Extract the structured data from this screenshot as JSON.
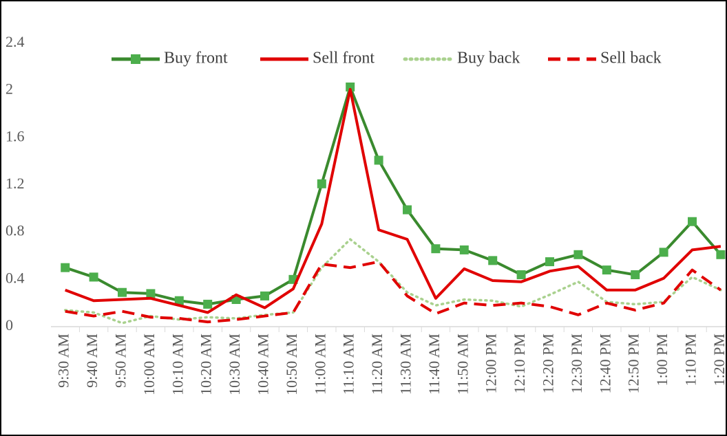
{
  "chart_data": {
    "type": "line",
    "categories": [
      "9:30 AM",
      "9:40 AM",
      "9:50 AM",
      "10:00 AM",
      "10:10 AM",
      "10:20 AM",
      "10:30 AM",
      "10:40 AM",
      "10:50 AM",
      "11:00 AM",
      "11:10 AM",
      "11:20 AM",
      "11:30 AM",
      "11:40 AM",
      "11:50 AM",
      "12:00 PM",
      "12:10 PM",
      "12:20 PM",
      "12:30 PM",
      "12:40 PM",
      "12:50 PM",
      "1:00 PM",
      "1:10 PM",
      "1:20 PM"
    ],
    "series": [
      {
        "name": "Buy front",
        "color": "#3a8a2e",
        "marker": "square",
        "marker_color": "#4cae4c",
        "dash": "solid",
        "values": [
          0.5,
          0.42,
          0.29,
          0.28,
          0.22,
          0.19,
          0.23,
          0.26,
          0.4,
          1.21,
          2.03,
          1.41,
          0.99,
          0.66,
          0.65,
          0.56,
          0.44,
          0.55,
          0.61,
          0.48,
          0.44,
          0.63,
          0.89,
          0.61
        ]
      },
      {
        "name": "Sell front",
        "color": "#e00000",
        "dash": "solid",
        "values": [
          0.31,
          0.22,
          0.23,
          0.24,
          0.18,
          0.12,
          0.27,
          0.16,
          0.32,
          0.87,
          2.01,
          0.82,
          0.74,
          0.24,
          0.49,
          0.39,
          0.38,
          0.47,
          0.51,
          0.31,
          0.31,
          0.41,
          0.65,
          0.68
        ]
      },
      {
        "name": "Buy back",
        "color": "#a9d18e",
        "dash": "dotted",
        "values": [
          0.14,
          0.12,
          0.03,
          0.09,
          0.06,
          0.08,
          0.07,
          0.1,
          0.12,
          0.5,
          0.74,
          0.55,
          0.29,
          0.18,
          0.23,
          0.22,
          0.17,
          0.27,
          0.38,
          0.21,
          0.19,
          0.21,
          0.42,
          0.31
        ]
      },
      {
        "name": "Sell back",
        "color": "#e00000",
        "dash": "dashed",
        "values": [
          0.13,
          0.09,
          0.13,
          0.08,
          0.07,
          0.04,
          0.06,
          0.09,
          0.12,
          0.53,
          0.5,
          0.55,
          0.26,
          0.11,
          0.2,
          0.18,
          0.2,
          0.17,
          0.1,
          0.2,
          0.14,
          0.2,
          0.48,
          0.31
        ]
      }
    ],
    "ylim": [
      0,
      2.4
    ],
    "yticks": [
      0,
      0.4,
      0.8,
      1.2,
      1.6,
      2,
      2.4
    ],
    "grid": false,
    "legend": "top"
  }
}
